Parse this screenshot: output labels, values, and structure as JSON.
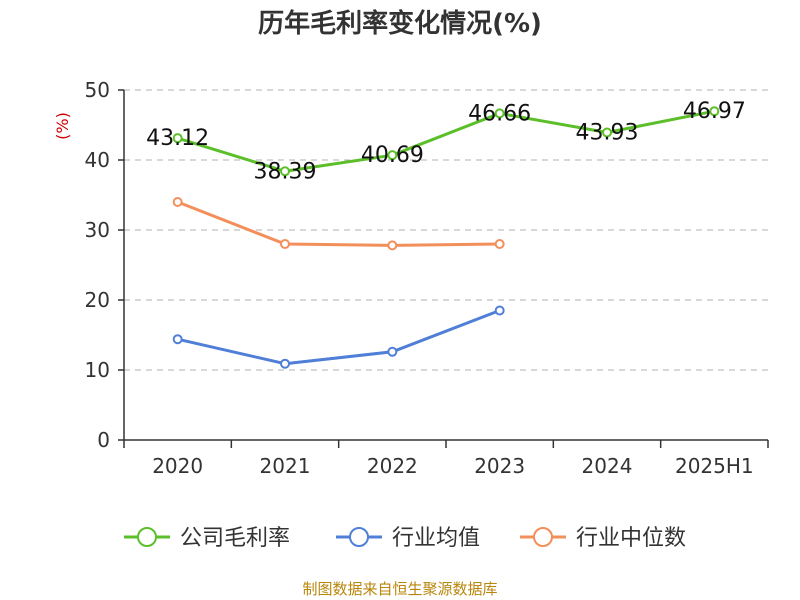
{
  "chart_data": {
    "type": "line",
    "title": "历年毛利率变化情况(%)",
    "ylabel": "(%)",
    "categories": [
      "2020",
      "2021",
      "2022",
      "2023",
      "2024",
      "2025H1"
    ],
    "ylim": [
      0,
      50
    ],
    "yticks": [
      0,
      10,
      20,
      30,
      40,
      50
    ],
    "grid": true,
    "legend_position": "bottom",
    "series": [
      {
        "name": "公司毛利率",
        "color": "#5cbf2a",
        "values": [
          43.12,
          38.39,
          40.69,
          46.66,
          43.93,
          46.97
        ],
        "show_labels": true
      },
      {
        "name": "行业均值",
        "color": "#4f7fd6",
        "values": [
          14.4,
          10.9,
          12.6,
          18.5,
          null,
          null
        ],
        "show_labels": false
      },
      {
        "name": "行业中位数",
        "color": "#f28f5a",
        "values": [
          34.0,
          28.0,
          27.8,
          28.0,
          null,
          null
        ],
        "show_labels": false
      }
    ]
  },
  "source_text": "制图数据来自恒生聚源数据库"
}
